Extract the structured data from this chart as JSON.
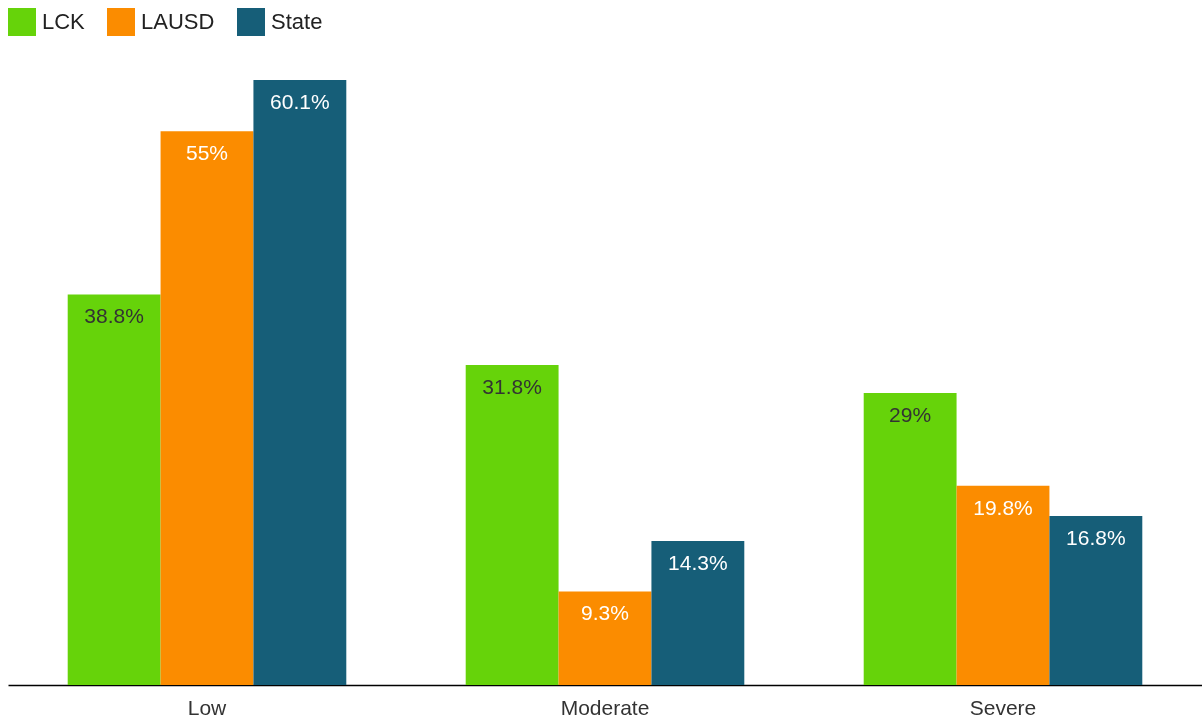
{
  "chart_data": {
    "type": "bar",
    "categories": [
      "Low",
      "Moderate",
      "Severe"
    ],
    "series": [
      {
        "name": "LCK",
        "color": "#66d30a",
        "values": [
          38.8,
          31.8,
          29
        ],
        "value_labels": [
          "38.8%",
          "31.8%",
          "29%"
        ]
      },
      {
        "name": "LAUSD",
        "color": "#fb8c00",
        "values": [
          55,
          9.3,
          19.8
        ],
        "value_labels": [
          "55%",
          "9.3%",
          "19.8%"
        ]
      },
      {
        "name": "State",
        "color": "#165e78",
        "values": [
          60.1,
          14.3,
          16.8
        ],
        "value_labels": [
          "60.1%",
          "14.3%",
          "16.8%"
        ]
      }
    ],
    "legend": "top left"
  }
}
